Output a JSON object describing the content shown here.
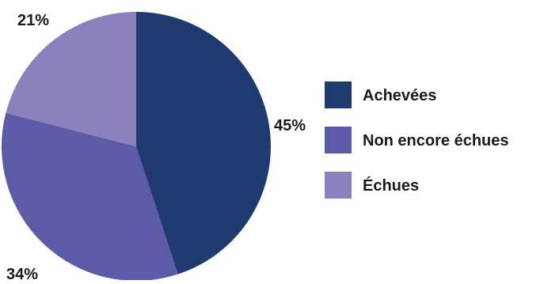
{
  "chart_data": {
    "type": "pie",
    "title": "",
    "categories": [
      "Achevées",
      "Non encore échues",
      "Échues"
    ],
    "values": [
      45,
      34,
      21
    ],
    "value_labels": [
      "45%",
      "34%",
      "21%"
    ],
    "colors": [
      "#1f3a6e",
      "#5b5ba8",
      "#8c81bd"
    ],
    "start_angle_deg": 0,
    "direction": "clockwise",
    "legend_position": "right",
    "grid": false
  }
}
